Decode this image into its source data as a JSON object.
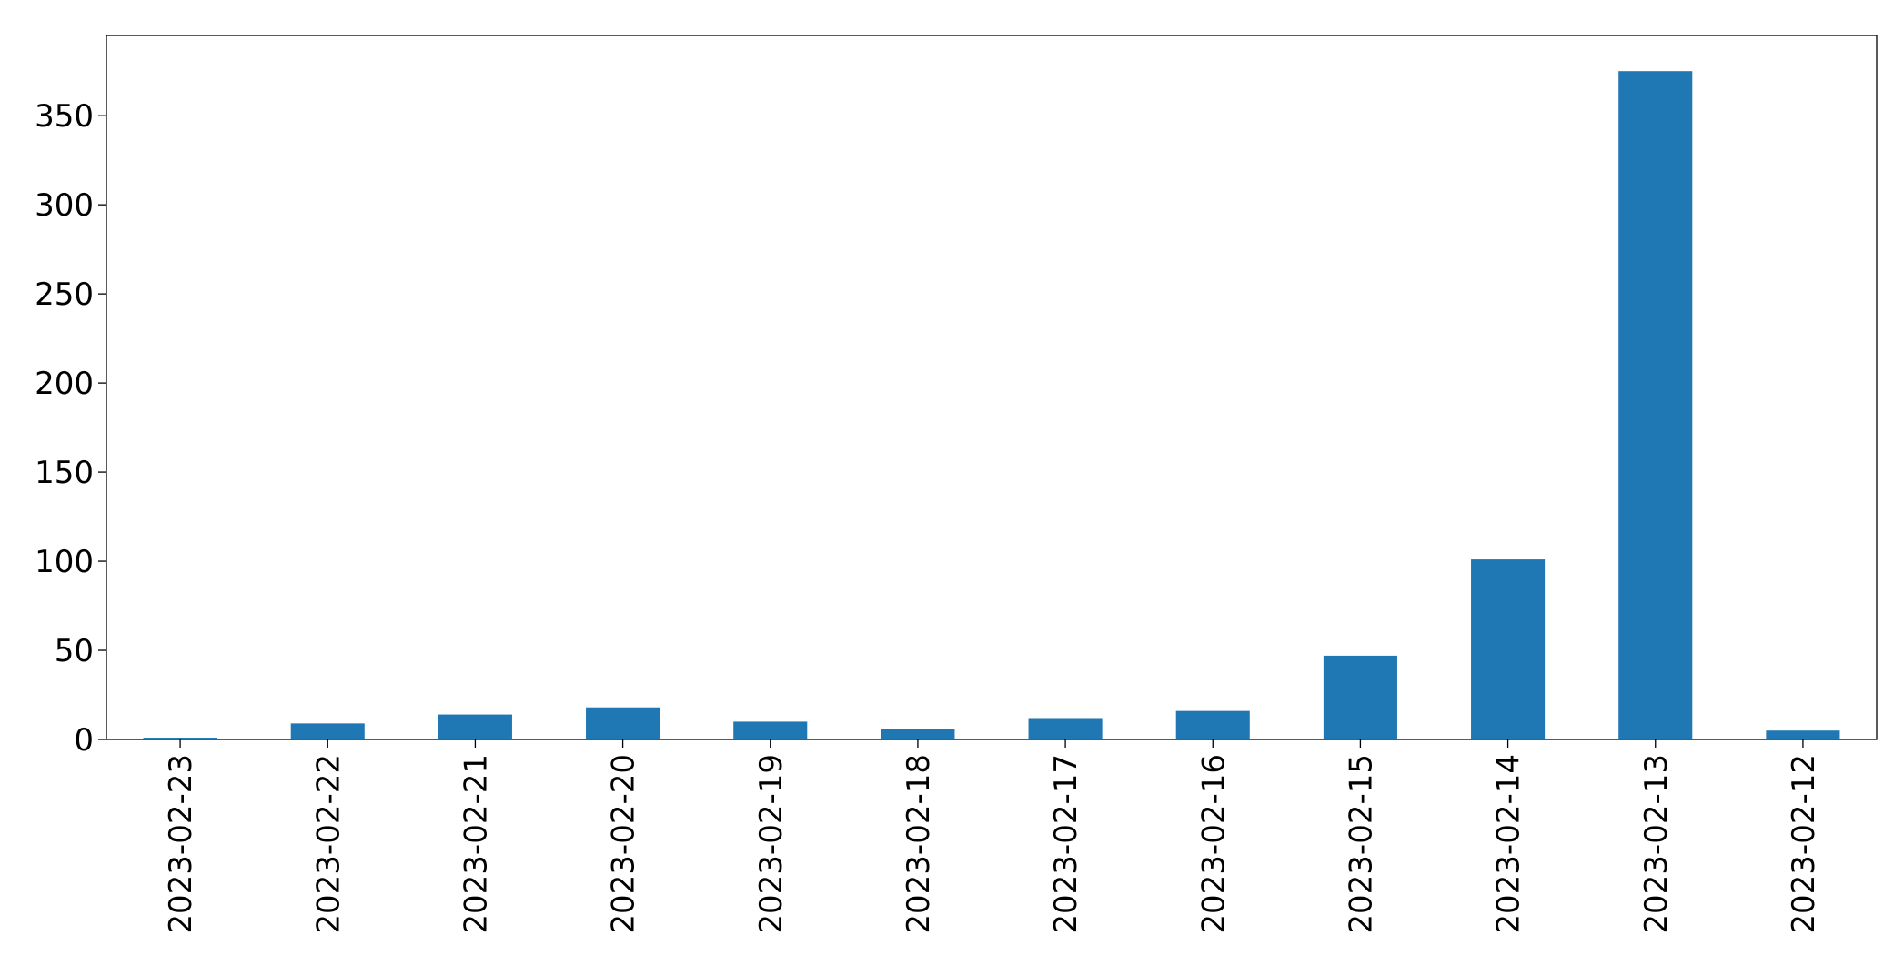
{
  "chart_data": {
    "type": "bar",
    "categories": [
      "2023-02-23",
      "2023-02-22",
      "2023-02-21",
      "2023-02-20",
      "2023-02-19",
      "2023-02-18",
      "2023-02-17",
      "2023-02-16",
      "2023-02-15",
      "2023-02-14",
      "2023-02-13",
      "2023-02-12"
    ],
    "values": [
      1,
      9,
      14,
      18,
      10,
      6,
      12,
      16,
      47,
      101,
      375,
      5
    ],
    "color": "#1f77b4",
    "ylim": [
      0,
      395
    ],
    "yticks": [
      0,
      50,
      100,
      150,
      200,
      250,
      300,
      350
    ],
    "grid": false
  }
}
